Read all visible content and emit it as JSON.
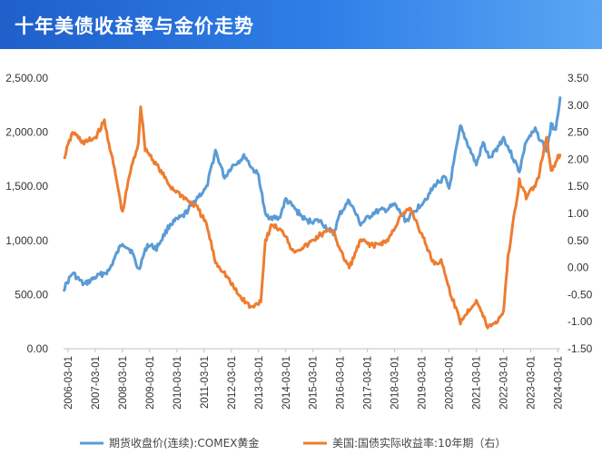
{
  "header": {
    "title": "十年美债收益率与金价走势"
  },
  "chart_data": {
    "type": "line",
    "title": "十年美债收益率与金价走势",
    "y_left": {
      "range": [
        0,
        2500
      ],
      "ticks": [
        "0.00",
        "500.00",
        "1,000.00",
        "1,500.00",
        "2,000.00",
        "2,500.00"
      ]
    },
    "y_right": {
      "range": [
        -1.5,
        3.5
      ],
      "ticks": [
        "-1.50",
        "-1.00",
        "-0.50",
        "0.00",
        "0.50",
        "1.00",
        "1.50",
        "2.00",
        "2.50",
        "3.00",
        "3.50"
      ]
    },
    "x_range": [
      "2006-01",
      "2024-04"
    ],
    "x_ticks": [
      "2006-03-01",
      "2007-03-01",
      "2008-03-01",
      "2009-03-01",
      "2010-03-01",
      "2011-03-01",
      "2012-03-01",
      "2013-03-01",
      "2014-03-01",
      "2015-03-01",
      "2016-03-01",
      "2017-03-01",
      "2018-03-01",
      "2019-03-01",
      "2020-03-01",
      "2021-03-01",
      "2022-03-01",
      "2023-03-01",
      "2024-03-01"
    ],
    "grid": false,
    "legend_position": "bottom",
    "series": [
      {
        "name": "期货收盘价(连续):COMEX黄金",
        "axis": "left",
        "color": "#5b9bd5",
        "points": [
          [
            "2006-01",
            550
          ],
          [
            "2006-05",
            700
          ],
          [
            "2006-10",
            590
          ],
          [
            "2007-03",
            660
          ],
          [
            "2007-09",
            720
          ],
          [
            "2008-01",
            900
          ],
          [
            "2008-03",
            980
          ],
          [
            "2008-07",
            900
          ],
          [
            "2008-10",
            730
          ],
          [
            "2009-02",
            960
          ],
          [
            "2009-06",
            930
          ],
          [
            "2009-12",
            1150
          ],
          [
            "2010-06",
            1230
          ],
          [
            "2010-12",
            1400
          ],
          [
            "2011-04",
            1480
          ],
          [
            "2011-08",
            1830
          ],
          [
            "2011-12",
            1580
          ],
          [
            "2012-03",
            1680
          ],
          [
            "2012-09",
            1780
          ],
          [
            "2012-12",
            1670
          ],
          [
            "2013-03",
            1600
          ],
          [
            "2013-06",
            1230
          ],
          [
            "2013-12",
            1200
          ],
          [
            "2014-03",
            1380
          ],
          [
            "2014-12",
            1180
          ],
          [
            "2015-06",
            1180
          ],
          [
            "2015-12",
            1060
          ],
          [
            "2016-03",
            1250
          ],
          [
            "2016-07",
            1370
          ],
          [
            "2016-12",
            1150
          ],
          [
            "2017-06",
            1260
          ],
          [
            "2017-12",
            1290
          ],
          [
            "2018-03",
            1330
          ],
          [
            "2018-08",
            1180
          ],
          [
            "2019-01",
            1300
          ],
          [
            "2019-06",
            1420
          ],
          [
            "2019-09",
            1520
          ],
          [
            "2020-01",
            1580
          ],
          [
            "2020-03",
            1480
          ],
          [
            "2020-08",
            2050
          ],
          [
            "2021-03",
            1700
          ],
          [
            "2021-06",
            1900
          ],
          [
            "2021-09",
            1750
          ],
          [
            "2022-03",
            1950
          ],
          [
            "2022-10",
            1640
          ],
          [
            "2023-01",
            1920
          ],
          [
            "2023-05",
            2020
          ],
          [
            "2023-10",
            1830
          ],
          [
            "2023-12",
            2060
          ],
          [
            "2024-02",
            2040
          ],
          [
            "2024-04",
            2330
          ]
        ]
      },
      {
        "name": "美国:国债实际收益率:10年期（右）",
        "axis": "right",
        "color": "#ed7d31",
        "points": [
          [
            "2006-01",
            2.0
          ],
          [
            "2006-05",
            2.5
          ],
          [
            "2006-10",
            2.3
          ],
          [
            "2007-03",
            2.4
          ],
          [
            "2007-07",
            2.7
          ],
          [
            "2007-12",
            1.7
          ],
          [
            "2008-03",
            1.0
          ],
          [
            "2008-06",
            1.7
          ],
          [
            "2008-10",
            2.3
          ],
          [
            "2008-11",
            3.0
          ],
          [
            "2009-01",
            2.2
          ],
          [
            "2009-06",
            1.9
          ],
          [
            "2009-12",
            1.5
          ],
          [
            "2010-06",
            1.3
          ],
          [
            "2010-12",
            1.1
          ],
          [
            "2011-04",
            0.8
          ],
          [
            "2011-08",
            0.1
          ],
          [
            "2011-12",
            -0.1
          ],
          [
            "2012-06",
            -0.5
          ],
          [
            "2012-12",
            -0.75
          ],
          [
            "2013-04",
            -0.6
          ],
          [
            "2013-06",
            0.5
          ],
          [
            "2013-09",
            0.8
          ],
          [
            "2014-03",
            0.6
          ],
          [
            "2014-06",
            0.3
          ],
          [
            "2014-12",
            0.4
          ],
          [
            "2015-06",
            0.6
          ],
          [
            "2015-12",
            0.7
          ],
          [
            "2016-03",
            0.3
          ],
          [
            "2016-07",
            0.0
          ],
          [
            "2016-12",
            0.5
          ],
          [
            "2017-06",
            0.4
          ],
          [
            "2017-12",
            0.5
          ],
          [
            "2018-05",
            0.9
          ],
          [
            "2018-10",
            1.1
          ],
          [
            "2019-03",
            0.6
          ],
          [
            "2019-08",
            0.1
          ],
          [
            "2019-12",
            0.1
          ],
          [
            "2020-03",
            -0.4
          ],
          [
            "2020-08",
            -1.0
          ],
          [
            "2021-03",
            -0.6
          ],
          [
            "2021-08",
            -1.1
          ],
          [
            "2021-12",
            -1.0
          ],
          [
            "2022-03",
            -0.8
          ],
          [
            "2022-05",
            0.2
          ],
          [
            "2022-10",
            1.6
          ],
          [
            "2023-01",
            1.3
          ],
          [
            "2023-06",
            1.6
          ],
          [
            "2023-10",
            2.4
          ],
          [
            "2023-12",
            1.8
          ],
          [
            "2024-04",
            2.1
          ]
        ]
      }
    ]
  }
}
